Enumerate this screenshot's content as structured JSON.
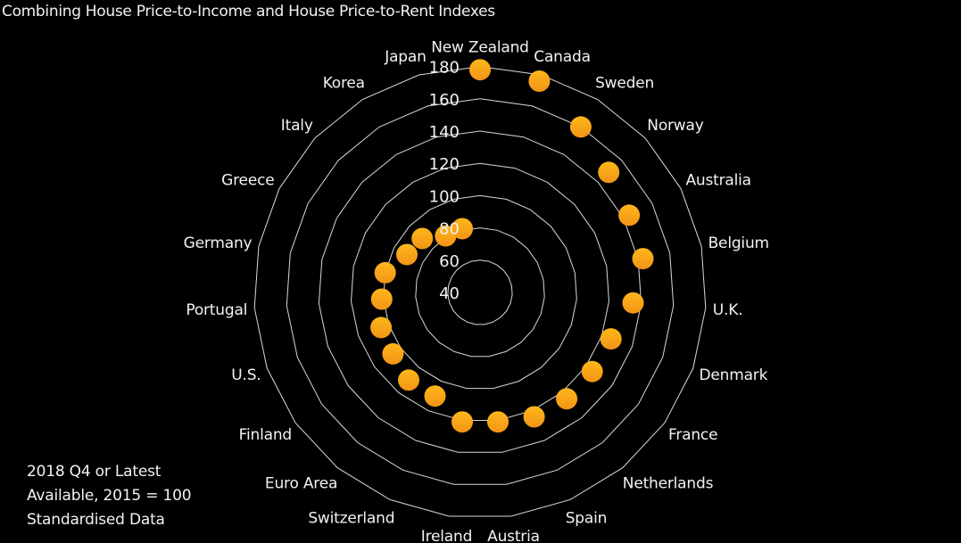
{
  "title": "Combining House Price-to-Income and House Price-to-Rent Indexes",
  "note": [
    "2018 Q4 or Latest",
    "Available, 2015 = 100",
    "Standardised Data"
  ],
  "colors": {
    "background": "#000000",
    "grid": "#d9d9d9",
    "marker_top": "#ffb71a",
    "marker_bottom": "#f29417",
    "text": "#f2f2f2"
  },
  "chart_data": {
    "type": "radar",
    "title": "Combining House Price-to-Income and House Price-to-Rent Indexes",
    "categories": [
      "New Zealand",
      "Canada",
      "Sweden",
      "Norway",
      "Australia",
      "Belgium",
      "U.K.",
      "Denmark",
      "France",
      "Netherlands",
      "Spain",
      "Austria",
      "Ireland",
      "Switzerland",
      "Euro Area",
      "Finland",
      "U.S.",
      "Portugal",
      "Germany",
      "Greece",
      "Italy",
      "Korea",
      "Japan"
    ],
    "series": [
      {
        "name": "Standardised Data (2015 = 100)",
        "marker": "circle",
        "line": "none",
        "values": [
          178,
          176,
          160,
          149,
          144,
          143,
          135,
          126,
          125,
          125,
          124,
          121,
          121,
          110,
          110,
          106,
          105,
          101,
          100,
          91,
          89,
          81,
          81
        ]
      }
    ],
    "radial_axis": {
      "min": 40,
      "max": 180,
      "step": 20,
      "tick_labels": [
        "40",
        "60",
        "80",
        "100",
        "120",
        "140",
        "160",
        "180"
      ]
    },
    "grid": true,
    "legend": "none",
    "annotation": "2018 Q4 or Latest Available, 2015 = 100 Standardised Data"
  }
}
